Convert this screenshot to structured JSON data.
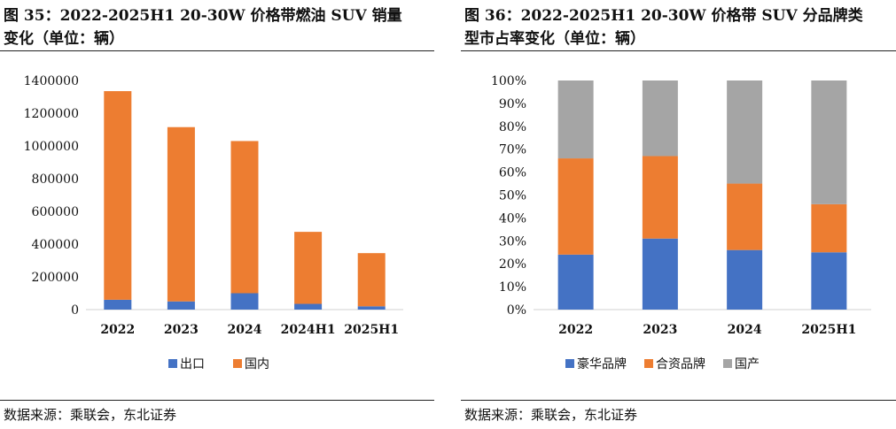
{
  "colors": {
    "export": "#4472C4",
    "domestic": "#ED7D31",
    "luxury": "#4472C4",
    "joint": "#ED7D31",
    "domestic_brand": "#A5A5A5"
  },
  "left": {
    "title_line1": "图 35：2022-2025H1 20-30W 价格带燃油 SUV 销量",
    "title_line2": "变化（单位：辆）",
    "source": "数据来源：乘联会，东北证券"
  },
  "right": {
    "title_line1": "图 36：2022-2025H1 20-30W 价格带 SUV 分品牌类",
    "title_line2": "型市占率变化（单位：辆）",
    "source": "数据来源：乘联会，东北证券"
  },
  "chart_data": [
    {
      "type": "bar",
      "stacked": true,
      "title": "2022-2025H1 20-30W 价格带燃油 SUV 销量变化（单位：辆）",
      "categories": [
        "2022",
        "2023",
        "2024",
        "2024H1",
        "2025H1"
      ],
      "series": [
        {
          "name": "出口",
          "values": [
            60000,
            50000,
            100000,
            35000,
            20000
          ]
        },
        {
          "name": "国内",
          "values": [
            1275000,
            1065000,
            930000,
            440000,
            325000
          ]
        }
      ],
      "yticks": [
        "0",
        "200000",
        "400000",
        "600000",
        "800000",
        "1000000",
        "1200000",
        "1400000"
      ],
      "ylim": [
        0,
        1400000
      ],
      "legend_position": "bottom"
    },
    {
      "type": "bar",
      "stacked": true,
      "percent": true,
      "title": "2022-2025H1 20-30W 价格带 SUV 分品牌类型市占率变化（单位：辆）",
      "categories": [
        "2022",
        "2023",
        "2024",
        "2025H1"
      ],
      "series": [
        {
          "name": "豪华品牌",
          "values": [
            24,
            31,
            26,
            25
          ]
        },
        {
          "name": "合资品牌",
          "values": [
            42,
            36,
            29,
            21
          ]
        },
        {
          "name": "国产",
          "values": [
            34,
            33,
            45,
            54
          ]
        }
      ],
      "yticks": [
        "0%",
        "10%",
        "20%",
        "30%",
        "40%",
        "50%",
        "60%",
        "70%",
        "80%",
        "90%",
        "100%"
      ],
      "ylim": [
        0,
        100
      ],
      "legend_position": "bottom"
    }
  ]
}
